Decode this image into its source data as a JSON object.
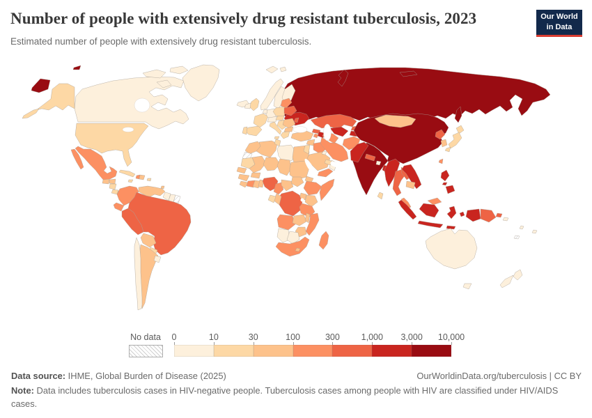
{
  "header": {
    "title": "Number of people with extensively drug resistant tuberculosis, 2023",
    "subtitle": "Estimated number of people with extensively drug resistant tuberculosis."
  },
  "logo": {
    "line1": "Our World",
    "line2": "in Data",
    "bg_color": "#12294b",
    "accent_color": "#d93d32"
  },
  "legend": {
    "no_data_label": "No data",
    "tick_labels": [
      "0",
      "10",
      "30",
      "100",
      "300",
      "1,000",
      "3,000",
      "10,000"
    ]
  },
  "footer": {
    "source_label": "Data source:",
    "source_text": " IHME, Global Burden of Disease (2025)",
    "link_text": "OurWorldinData.org/tuberculosis | CC BY",
    "note_label": "Note:",
    "note_text": " Data includes tuberculosis cases in HIV-negative people. Tuberculosis cases among people with HIV are classified under HIV/AIDS cases."
  },
  "chart_data": {
    "type": "heatmap",
    "subtype": "choropleth-world-map",
    "title": "Number of people with extensively drug resistant tuberculosis, 2023",
    "unit": "people",
    "bin_edges": [
      0,
      10,
      30,
      100,
      300,
      1000,
      3000,
      10000
    ],
    "bin_colors": [
      "#fdf0dc",
      "#fdd8a5",
      "#fdc28b",
      "#fc9062",
      "#ee6445",
      "#c9251f",
      "#990c12"
    ],
    "border_color": "#a89f96",
    "no_data_style": "hatched",
    "legend_position": "bottom",
    "countries": {
      "Russia": 6,
      "Russia (Chukotka)": 6,
      "Russia (Wrangel Island)": 6,
      "Russia (Novaya Zemlya)": 6,
      "Russia (New Siberian Islands)": 6,
      "Russia (Sakhalin)": 6,
      "Russia (Kaliningrad)": 6,
      "Canada": 0,
      "Canadian Arctic 1": 0,
      "Canadian Arctic 2": 0,
      "Canadian Arctic 3": 0,
      "Greenland": 0,
      "Iceland": 0,
      "Svalbard": 0,
      "Svalbard East": 0,
      "United States (Alaska)": 1,
      "United States (Aleutians)": 1,
      "United States": 1,
      "Mexico": 3,
      "Mexico (Baja California)": 3,
      "Guatemala": 2,
      "Honduras": 2,
      "Nicaragua": 1,
      "Costa Rica": 1,
      "Panama": 2,
      "Cuba": 1,
      "Jamaica": 1,
      "Haiti": 3,
      "Dominican Republic": 2,
      "Puerto Rico": 1,
      "Trinidad and Tobago": 2,
      "Colombia": 3,
      "Venezuela": 2,
      "Guyana": 0,
      "Suriname": 0,
      "French Guiana": null,
      "Ecuador": 3,
      "Brazil": 4,
      "Peru": 4,
      "Bolivia": 2,
      "Paraguay": 1,
      "Chile": 0,
      "Argentina": 2,
      "Uruguay": 0,
      "Morocco": 2,
      "Western Sahara": null,
      "Algeria": 2,
      "Tunisia": 1,
      "Libya": 0,
      "Egypt": 2,
      "Mauritania": 1,
      "Mali": 2,
      "Niger": 2,
      "Chad": 2,
      "Sudan": 2,
      "Eritrea": 2,
      "Senegal": 2,
      "Guinea": 2,
      "Sierra Leone": 2,
      "Cote d'Ivoire": 3,
      "Ghana": 2,
      "Togo and Benin": 2,
      "Burkina Faso": 2,
      "Nigeria": 4,
      "Cameroon": 3,
      "Central African Republic": 2,
      "South Sudan": 2,
      "Ethiopia": 3,
      "Somalia": 3,
      "Kenya": 2,
      "Uganda": 2,
      "Democratic Republic of Congo": 4,
      "Congo": 2,
      "Gabon": 1,
      "Tanzania": 3,
      "Angola": 3,
      "Zambia": 2,
      "Malawi": 2,
      "Mozambique": 3,
      "Zimbabwe": 2,
      "Namibia": 0,
      "Botswana": 0,
      "South Africa": 3,
      "Lesotho": 2,
      "Madagascar": 3,
      "Norway": 0,
      "Sweden": 0,
      "Finland": 0,
      "Denmark": 0,
      "United Kingdom": 1,
      "Ireland": 0,
      "France": 1,
      "Spain": 1,
      "Portugal": 1,
      "Germany": 0,
      "Benelux": 0,
      "Poland": 1,
      "Czechia and Austria": 0,
      "Italy": 1,
      "Sicily": 1,
      "Hungary and Slovakia": 1,
      "Balkans": 1,
      "Greece": 1,
      "Ukraine": 5,
      "Romania": 2,
      "Bulgaria": 2,
      "Moldova": 4,
      "Baltic states": 3,
      "Belarus": 4,
      "Turkey": 2,
      "Georgia": 4,
      "Azerbaijan": 5,
      "Armenia": 3,
      "Syria": 2,
      "Iraq": 3,
      "Israel and Jordan": 1,
      "Saudi Arabia": 2,
      "Kuwait": 0,
      "United Arab Emirates": 1,
      "Oman": 0,
      "Yemen": 3,
      "Kazakhstan": 4,
      "Uzbekistan": 5,
      "Iran": 3,
      "Turkmenistan": 3,
      "Kyrgyzstan": 4,
      "Tajikistan": 5,
      "China": 6,
      "Mongolia": 2,
      "India": 6,
      "Afghanistan": 3,
      "Pakistan": 5,
      "Nepal": 4,
      "Bhutan": 0,
      "Bangladesh": 5,
      "Sri Lanka": 1,
      "North Korea": 4,
      "South Korea": 2,
      "Japan (Hokkaido)": 1,
      "Japan (Honshu)": 1,
      "Japan (Kyushu)": 1,
      "Taiwan": 3,
      "Myanmar": 5,
      "Thailand": 4,
      "Laos": 4,
      "Vietnam": 5,
      "Cambodia": 2,
      "Malaysia (peninsula)": 3,
      "Malaysia (Borneo)": 3,
      "Indonesia (Sumatra)": 5,
      "Indonesia (Java)": 5,
      "Indonesia (Kalimantan)": 5,
      "Indonesia (Sulawesi)": 5,
      "Indonesia (Maluku)": 5,
      "Indonesia (Lesser Sunda)": 5,
      "Indonesia (Papua)": 5,
      "Papua New Guinea": 4,
      "Papua New Guinea (New Britain)": 4,
      "Philippines (Luzon)": 5,
      "Philippines (Visayas)": 5,
      "Philippines (Mindanao)": 5,
      "Australia": 0,
      "Australia (Tasmania)": 0,
      "New Zealand (North Island)": 0,
      "New Zealand (South Island)": 0,
      "Solomon Islands": 0,
      "Vanuatu": 0,
      "Fiji": 0,
      "New Caledonia": null
    }
  }
}
